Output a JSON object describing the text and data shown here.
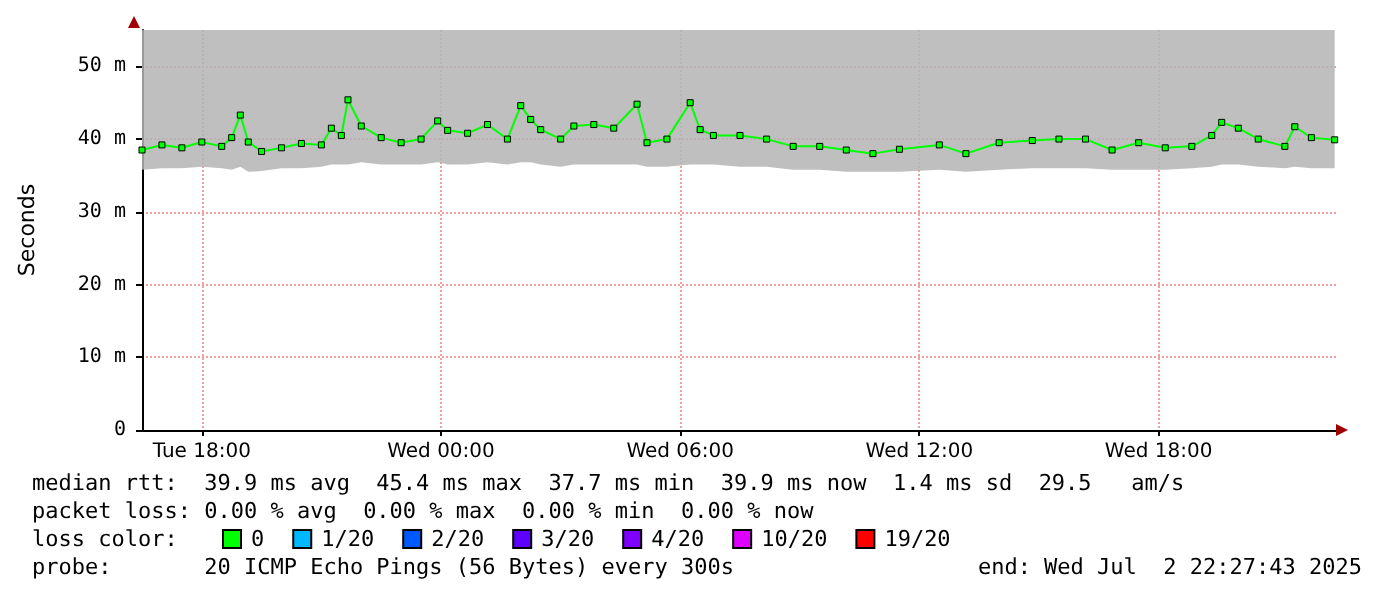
{
  "chart_data": {
    "type": "line",
    "ylabel": "Seconds",
    "xlim": [
      "2025-07-01T16:30",
      "2025-07-02T22:27"
    ],
    "xticks": [
      {
        "value": "2025-07-01T18:00",
        "label": "Tue 18:00"
      },
      {
        "value": "2025-07-02T00:00",
        "label": "Wed 00:00"
      },
      {
        "value": "2025-07-02T06:00",
        "label": "Wed 06:00"
      },
      {
        "value": "2025-07-02T12:00",
        "label": "Wed 12:00"
      },
      {
        "value": "2025-07-02T18:00",
        "label": "Wed 18:00"
      }
    ],
    "ylim": [
      0,
      55
    ],
    "yticks": [
      0,
      {
        "value": 10,
        "label": "10 m"
      },
      {
        "value": 20,
        "label": "20 m"
      },
      {
        "value": 30,
        "label": "30 m"
      },
      {
        "value": 40,
        "label": "40 m"
      },
      {
        "value": 50,
        "label": "50 m"
      }
    ],
    "grid": true,
    "legend": "bottom",
    "marker": "square",
    "line_style": "solid",
    "series": [
      {
        "name": "0",
        "color": "#00ff00",
        "x": [
          "2025-07-01T16:30",
          "2025-07-01T17:00",
          "2025-07-01T17:30",
          "2025-07-01T18:00",
          "2025-07-01T18:30",
          "2025-07-01T18:45",
          "2025-07-01T18:58",
          "2025-07-01T19:10",
          "2025-07-01T19:30",
          "2025-07-01T20:00",
          "2025-07-01T20:30",
          "2025-07-01T21:00",
          "2025-07-01T21:15",
          "2025-07-01T21:30",
          "2025-07-01T21:40",
          "2025-07-01T22:00",
          "2025-07-01T22:30",
          "2025-07-01T23:00",
          "2025-07-01T23:30",
          "2025-07-01T23:55",
          "2025-07-02T00:10",
          "2025-07-02T00:40",
          "2025-07-02T01:10",
          "2025-07-02T01:40",
          "2025-07-02T02:00",
          "2025-07-02T02:15",
          "2025-07-02T02:30",
          "2025-07-02T03:00",
          "2025-07-02T03:20",
          "2025-07-02T03:50",
          "2025-07-02T04:20",
          "2025-07-02T04:55",
          "2025-07-02T05:10",
          "2025-07-02T05:40",
          "2025-07-02T06:15",
          "2025-07-02T06:30",
          "2025-07-02T06:50",
          "2025-07-02T07:30",
          "2025-07-02T08:10",
          "2025-07-02T08:50",
          "2025-07-02T09:30",
          "2025-07-02T10:10",
          "2025-07-02T10:50",
          "2025-07-02T11:30",
          "2025-07-02T12:30",
          "2025-07-02T13:10",
          "2025-07-02T14:00",
          "2025-07-02T14:50",
          "2025-07-02T15:30",
          "2025-07-02T16:10",
          "2025-07-02T16:50",
          "2025-07-02T17:30",
          "2025-07-02T18:10",
          "2025-07-02T18:50",
          "2025-07-02T19:20",
          "2025-07-02T19:35",
          "2025-07-02T20:00",
          "2025-07-02T20:30",
          "2025-07-02T21:10",
          "2025-07-02T21:25",
          "2025-07-02T21:50",
          "2025-07-02T22:25"
        ],
        "values": [
          38.5,
          39.2,
          38.8,
          39.6,
          39,
          40.2,
          43.3,
          39.6,
          38.3,
          38.8,
          39.4,
          39.2,
          41.5,
          40.5,
          45.4,
          41.8,
          40.2,
          39.5,
          40,
          42.5,
          41.2,
          40.8,
          42,
          40,
          44.6,
          42.7,
          41.3,
          40,
          41.8,
          42,
          41.5,
          44.8,
          39.5,
          40,
          45,
          41.3,
          40.5,
          40.5,
          40,
          39,
          39,
          38.5,
          38,
          38.6,
          39.2,
          38,
          39.5,
          39.8,
          40,
          40,
          38.5,
          39.5,
          38.8,
          39,
          40.5,
          42.3,
          41.5,
          40,
          39,
          41.7,
          40.2,
          39.9
        ],
        "lower": [
          35.8,
          36,
          36,
          36.2,
          36,
          35.8,
          36.2,
          35.5,
          35.6,
          36,
          36,
          36.2,
          36.5,
          36.5,
          36.5,
          36.8,
          36.5,
          36.5,
          36.5,
          36.8,
          36.5,
          36.5,
          36.8,
          36.5,
          36.8,
          36.8,
          36.5,
          36.2,
          36.5,
          36.5,
          36.5,
          36.5,
          36.2,
          36.2,
          36.5,
          36.5,
          36.5,
          36.2,
          36.2,
          35.8,
          35.8,
          35.5,
          35.5,
          35.5,
          35.8,
          35.5,
          35.8,
          36,
          36,
          36,
          35.8,
          35.8,
          35.8,
          36,
          36.2,
          36.5,
          36.5,
          36.2,
          36,
          36.2,
          36,
          36
        ],
        "upper": [
          55,
          55,
          55,
          55,
          55,
          55,
          55,
          55,
          55,
          55,
          55,
          55,
          55,
          55,
          55,
          55,
          55,
          55,
          55,
          55,
          55,
          55,
          55,
          55,
          55,
          55,
          55,
          55,
          55,
          55,
          55,
          55,
          55,
          55,
          55,
          55,
          55,
          55,
          55,
          55,
          55,
          55,
          55,
          55,
          55,
          55,
          55,
          55,
          55,
          55,
          55,
          55,
          55,
          55,
          55,
          55,
          55,
          55,
          55,
          55,
          55,
          55
        ]
      },
      {
        "name": "1/20",
        "color": "#00b8ff"
      },
      {
        "name": "2/20",
        "color": "#0059ff"
      },
      {
        "name": "3/20",
        "color": "#5e00ff"
      },
      {
        "name": "4/20",
        "color": "#7e00ff"
      },
      {
        "name": "10/20",
        "color": "#dd00ff"
      },
      {
        "name": "19/20",
        "color": "#ff0000"
      }
    ],
    "annotations": [
      "median rtt:  39.9 ms avg  45.4 ms max  37.7 ms min  39.9 ms now  1.4 ms sd  29.5   am/s",
      "packet loss: 0.00 % avg  0.00 % max  0.00 % min  0.00 % now",
      "loss color:",
      "probe:       20 ICMP Echo Pings (56 Bytes) every 300s",
      "end: Wed Jul  2 22:27:43 2025"
    ]
  }
}
